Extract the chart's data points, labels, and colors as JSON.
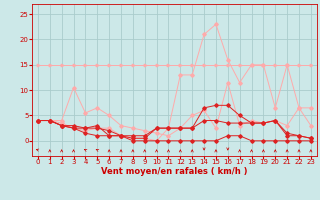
{
  "background_color": "#cce8e8",
  "grid_color": "#aacccc",
  "xlabel": "Vent moyen/en rafales ( km/h )",
  "xlabel_color": "#cc0000",
  "xlabel_fontsize": 6,
  "tick_color": "#cc0000",
  "tick_fontsize": 5,
  "ylim": [
    -3,
    27
  ],
  "xlim": [
    -0.5,
    23.5
  ],
  "yticks": [
    0,
    5,
    10,
    15,
    20,
    25
  ],
  "xticks": [
    0,
    1,
    2,
    3,
    4,
    5,
    6,
    7,
    8,
    9,
    10,
    11,
    12,
    13,
    14,
    15,
    16,
    17,
    18,
    19,
    20,
    21,
    22,
    23
  ],
  "line1_x": [
    0,
    1,
    2,
    3,
    4,
    5,
    6,
    7,
    8,
    9,
    10,
    11,
    12,
    13,
    14,
    15,
    16,
    17,
    18,
    19,
    20,
    21,
    22,
    23
  ],
  "line1_y": [
    15,
    15,
    15,
    15,
    15,
    15,
    15,
    15,
    15,
    15,
    15,
    15,
    15,
    15,
    15,
    15,
    15,
    15,
    15,
    15,
    15,
    15,
    15,
    15
  ],
  "line1_color": "#ffaaaa",
  "line1_marker": ">",
  "line2_x": [
    0,
    1,
    2,
    3,
    4,
    5,
    6,
    7,
    8,
    9,
    10,
    11,
    12,
    13,
    14,
    15,
    16,
    17,
    18,
    19,
    20,
    21,
    22,
    23
  ],
  "line2_y": [
    4,
    4,
    4,
    10.5,
    5.5,
    6.5,
    5,
    3,
    2.5,
    2,
    1.5,
    1,
    2.5,
    5,
    6,
    2.5,
    11.5,
    3,
    4,
    3.5,
    4,
    3,
    6.5,
    3
  ],
  "line2_color": "#ffaaaa",
  "line3_x": [
    0,
    1,
    2,
    3,
    4,
    5,
    6,
    7,
    8,
    9,
    10,
    11,
    12,
    13,
    14,
    15,
    16,
    17,
    18,
    19,
    20,
    21,
    22,
    23
  ],
  "line3_y": [
    4,
    4,
    3.5,
    2.5,
    2,
    2.5,
    2.5,
    1,
    0.5,
    0.5,
    0,
    2.5,
    13,
    13,
    21,
    23,
    16,
    11.5,
    15,
    15,
    6.5,
    15,
    6.5,
    6.5
  ],
  "line3_color": "#ffaaaa",
  "line4_x": [
    0,
    1,
    2,
    3,
    4,
    5,
    6,
    7,
    8,
    9,
    10,
    11,
    12,
    13,
    14,
    15,
    16,
    17,
    18,
    19,
    20,
    21,
    22,
    23
  ],
  "line4_y": [
    4,
    4,
    3,
    2.5,
    2.5,
    3,
    1,
    1,
    0.5,
    0.5,
    2.5,
    2.5,
    2.5,
    2.5,
    6.5,
    7,
    7,
    5,
    3.5,
    3.5,
    4,
    1.5,
    1,
    0.5
  ],
  "line4_color": "#dd2222",
  "line5_x": [
    0,
    1,
    2,
    3,
    4,
    5,
    6,
    7,
    8,
    9,
    10,
    11,
    12,
    13,
    14,
    15,
    16,
    17,
    18,
    19,
    20,
    21,
    22,
    23
  ],
  "line5_y": [
    4,
    4,
    3,
    2.5,
    1.5,
    1,
    1,
    1,
    0,
    0,
    0,
    0,
    0,
    0,
    0,
    0,
    1,
    1,
    0,
    0,
    0,
    0,
    0,
    0
  ],
  "line5_color": "#dd2222",
  "line6_x": [
    0,
    1,
    2,
    3,
    4,
    5,
    6,
    7,
    8,
    9,
    10,
    11,
    12,
    13,
    14,
    15,
    16,
    17,
    18,
    19,
    20,
    21,
    22,
    23
  ],
  "line6_y": [
    4,
    4,
    3,
    3,
    2.5,
    2.5,
    2,
    1,
    1,
    1,
    2.5,
    2.5,
    2.5,
    2.5,
    4,
    4,
    3.5,
    3.5,
    3.5,
    3.5,
    4,
    1,
    1,
    0.5
  ],
  "line6_color": "#dd2222",
  "arrow_color": "#cc0000",
  "arrow_directions": [
    135,
    90,
    90,
    90,
    120,
    120,
    90,
    90,
    90,
    90,
    90,
    90,
    90,
    90,
    270,
    90,
    270,
    90,
    90,
    90,
    90,
    90,
    90,
    90
  ]
}
